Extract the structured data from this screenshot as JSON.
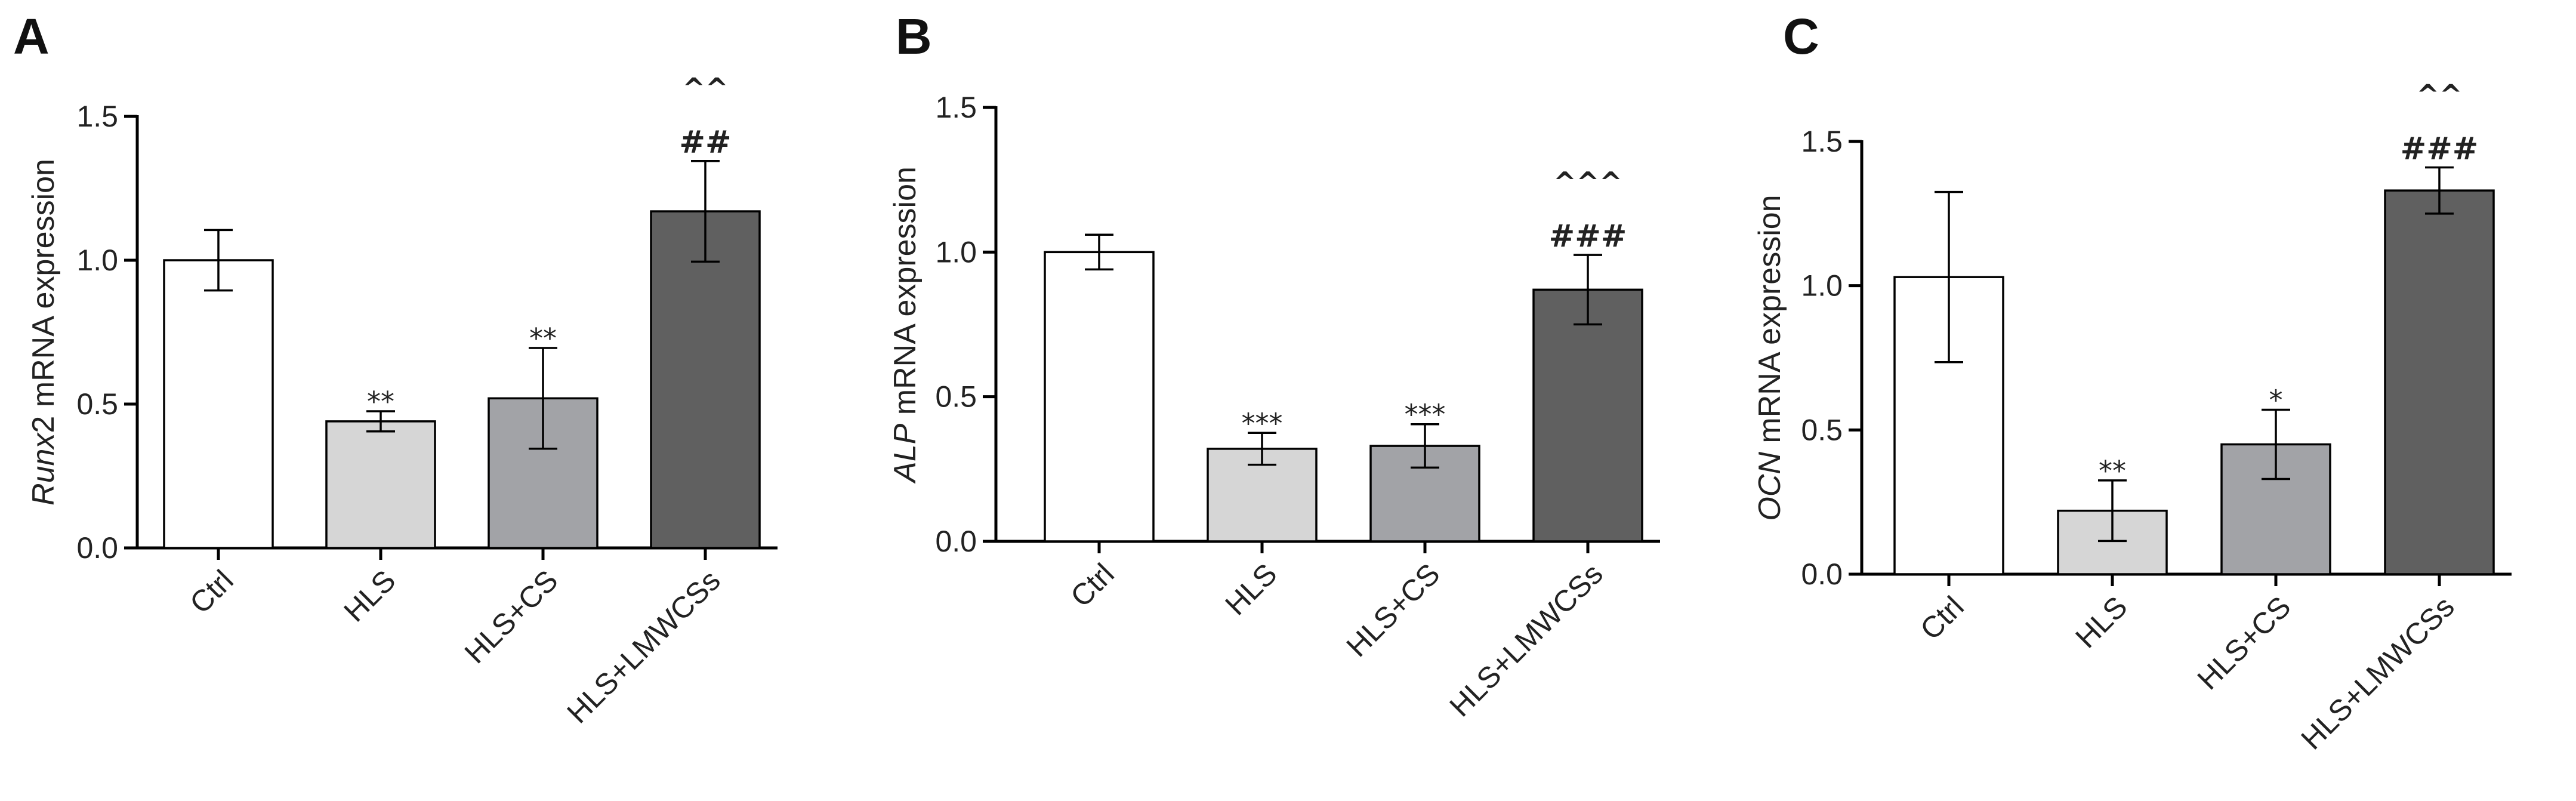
{
  "chart_data": [
    {
      "type": "bar",
      "panel": "A",
      "ylabel": {
        "gene": "Runx2",
        "suffix": "2 mRNA expression",
        "gene_italic": "Runx"
      },
      "ylim": [
        0,
        1.5
      ],
      "yticks": [
        "0.0",
        "0.5",
        "1.0",
        "1.5"
      ],
      "categories": [
        "Ctrl",
        "HLS",
        "HLS+CS",
        "HLS+LMWCSs"
      ],
      "values": [
        1.0,
        0.44,
        0.52,
        1.17
      ],
      "errors": [
        0.105,
        0.035,
        0.175,
        0.175
      ],
      "colors": [
        "#ffffff",
        "#d6d6d6",
        "#a2a3a7",
        "#606060"
      ],
      "annotations": [
        [],
        [
          "**"
        ],
        [
          "**"
        ],
        [
          "##",
          "^^"
        ]
      ]
    },
    {
      "type": "bar",
      "panel": "B",
      "ylabel": {
        "gene_italic": "ALP",
        "suffix": " mRNA expression"
      },
      "ylim": [
        0,
        1.5
      ],
      "yticks": [
        "0.0",
        "0.5",
        "1.0",
        "1.5"
      ],
      "categories": [
        "Ctrl",
        "HLS",
        "HLS+CS",
        "HLS+LMWCSs"
      ],
      "values": [
        1.0,
        0.32,
        0.33,
        0.87
      ],
      "errors": [
        0.06,
        0.055,
        0.075,
        0.12
      ],
      "colors": [
        "#ffffff",
        "#d6d6d6",
        "#a2a3a7",
        "#606060"
      ],
      "annotations": [
        [],
        [
          "***"
        ],
        [
          "***"
        ],
        [
          "###",
          "^^^"
        ]
      ]
    },
    {
      "type": "bar",
      "panel": "C",
      "ylabel": {
        "gene_italic": "OCN",
        "suffix": " mRNA expression"
      },
      "ylim": [
        0,
        1.5
      ],
      "yticks": [
        "0.0",
        "0.5",
        "1.0",
        "1.5"
      ],
      "categories": [
        "Ctrl",
        "HLS",
        "HLS+CS",
        "HLS+LMWCSs"
      ],
      "values": [
        1.03,
        0.22,
        0.45,
        1.33
      ],
      "errors": [
        0.295,
        0.105,
        0.12,
        0.08
      ],
      "colors": [
        "#ffffff",
        "#d6d6d6",
        "#a2a3a7",
        "#606060"
      ],
      "annotations": [
        [],
        [
          "**"
        ],
        [
          "*"
        ],
        [
          "###",
          "^^"
        ]
      ]
    }
  ]
}
